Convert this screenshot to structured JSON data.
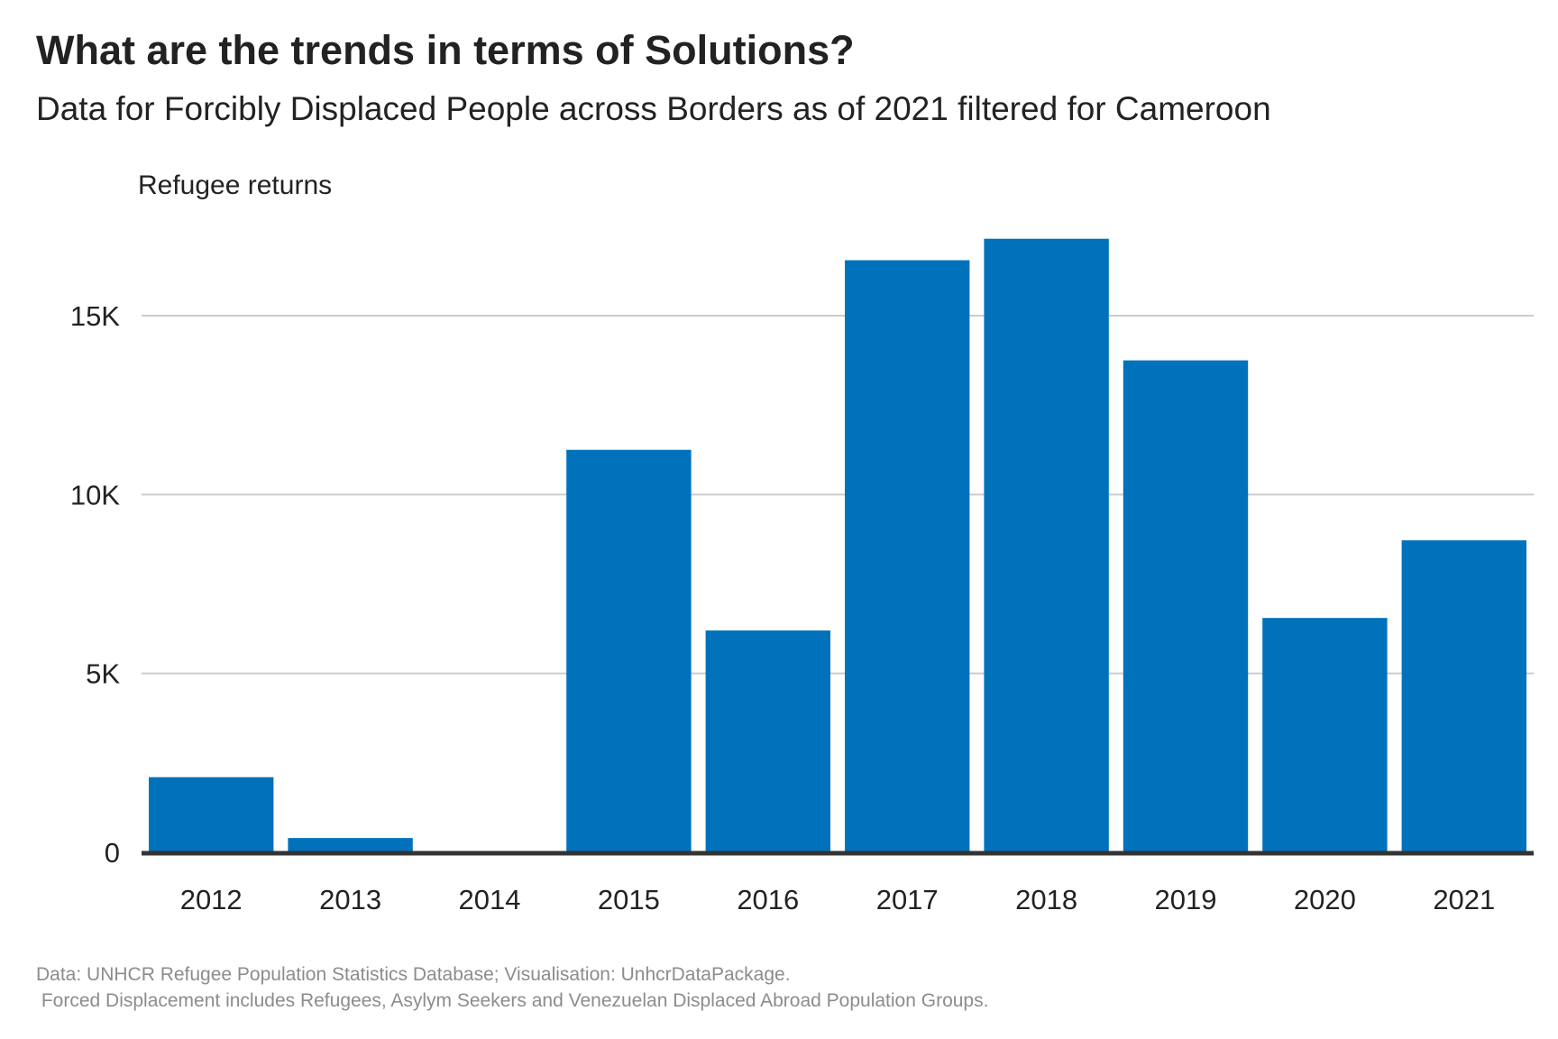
{
  "header": {
    "title": "What are the trends in terms of Solutions?",
    "subtitle": "Data for Forcibly Displaced People across Borders as of 2021 filtered for Cameroon"
  },
  "caption": {
    "line1": "Data: UNHCR Refugee Population Statistics Database; Visualisation: UnhcrDataPackage.",
    "line2": " Forced Displacement includes Refugees, Asylym Seekers and Venezuelan Displaced Abroad Population Groups."
  },
  "chart_data": {
    "type": "bar",
    "title": "What are the trends in terms of Solutions?",
    "subtitle": "Data for Forcibly Displaced People across Borders as of 2021 filtered for Cameroon",
    "ylabel": "Refugee returns",
    "xlabel": "",
    "categories": [
      "2012",
      "2013",
      "2014",
      "2015",
      "2016",
      "2017",
      "2018",
      "2019",
      "2020",
      "2021"
    ],
    "values": [
      2100,
      400,
      0,
      11250,
      6200,
      16550,
      17150,
      13750,
      6550,
      8720
    ],
    "ylim": [
      0,
      17500
    ],
    "yticks": [
      0,
      5000,
      10000,
      15000
    ],
    "ytick_labels": [
      "0",
      "5K",
      "10K",
      "15K"
    ],
    "grid": "horizontal",
    "legend": "none",
    "colors": {
      "bar": "#0072bc",
      "grid": "#cccccc",
      "baseline": "#333333",
      "text": "#222222",
      "caption": "#8c8c8c"
    }
  }
}
